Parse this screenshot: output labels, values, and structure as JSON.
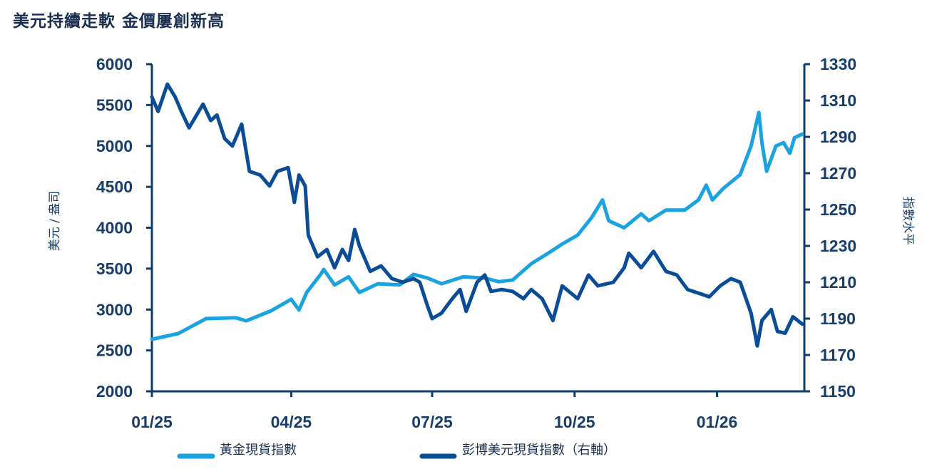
{
  "title": "美元持續走軟 金價屢創新高",
  "chart_data": {
    "type": "line",
    "title": "美元持續走軟 金價屢創新高",
    "x_ticks": [
      {
        "date": "2025-01-01",
        "label": "01/25"
      },
      {
        "date": "2025-04-01",
        "label": "04/25"
      },
      {
        "date": "2025-07-01",
        "label": "07/25"
      },
      {
        "date": "2025-10-01",
        "label": "10/25"
      },
      {
        "date": "2026-01-01",
        "label": "01/26"
      }
    ],
    "x_range": [
      "2025-01-01",
      "2026-02-25"
    ],
    "y_left": {
      "label": "美元 / 盎司",
      "range": [
        2000,
        6000
      ],
      "ticks": [
        2000,
        2500,
        3000,
        3500,
        4000,
        4500,
        5000,
        5500,
        6000
      ]
    },
    "y_right": {
      "label": "指數水平",
      "range": [
        1150,
        1330
      ],
      "ticks": [
        1150,
        1170,
        1190,
        1210,
        1230,
        1250,
        1270,
        1290,
        1310,
        1330
      ]
    },
    "grid": false,
    "legend_position": "bottom",
    "series": [
      {
        "name": "黃金現貨指數",
        "axis": "left",
        "color": "#1aa3e0",
        "points": [
          [
            "2025-01-01",
            2636
          ],
          [
            "2025-01-18",
            2706
          ],
          [
            "2025-02-05",
            2889
          ],
          [
            "2025-02-24",
            2900
          ],
          [
            "2025-03-03",
            2862
          ],
          [
            "2025-03-19",
            2985
          ],
          [
            "2025-04-01",
            3125
          ],
          [
            "2025-04-06",
            2994
          ],
          [
            "2025-04-11",
            3210
          ],
          [
            "2025-04-20",
            3430
          ],
          [
            "2025-04-22",
            3490
          ],
          [
            "2025-04-29",
            3300
          ],
          [
            "2025-05-08",
            3400
          ],
          [
            "2025-05-15",
            3210
          ],
          [
            "2025-05-27",
            3315
          ],
          [
            "2025-06-10",
            3300
          ],
          [
            "2025-06-19",
            3430
          ],
          [
            "2025-06-28",
            3385
          ],
          [
            "2025-07-07",
            3315
          ],
          [
            "2025-07-21",
            3400
          ],
          [
            "2025-08-04",
            3385
          ],
          [
            "2025-08-13",
            3340
          ],
          [
            "2025-08-22",
            3360
          ],
          [
            "2025-09-03",
            3560
          ],
          [
            "2025-09-14",
            3690
          ],
          [
            "2025-09-23",
            3800
          ],
          [
            "2025-10-03",
            3910
          ],
          [
            "2025-10-12",
            4125
          ],
          [
            "2025-10-19",
            4340
          ],
          [
            "2025-10-23",
            4085
          ],
          [
            "2025-11-02",
            4000
          ],
          [
            "2025-11-13",
            4170
          ],
          [
            "2025-11-18",
            4085
          ],
          [
            "2025-11-29",
            4215
          ],
          [
            "2025-12-11",
            4215
          ],
          [
            "2025-12-20",
            4340
          ],
          [
            "2025-12-25",
            4520
          ],
          [
            "2025-12-29",
            4340
          ],
          [
            "2026-01-05",
            4480
          ],
          [
            "2026-01-16",
            4650
          ],
          [
            "2026-01-23",
            5000
          ],
          [
            "2026-01-28",
            5410
          ],
          [
            "2026-01-30",
            5040
          ],
          [
            "2026-02-02",
            4690
          ],
          [
            "2026-02-08",
            5000
          ],
          [
            "2026-02-13",
            5040
          ],
          [
            "2026-02-17",
            4910
          ],
          [
            "2026-02-20",
            5100
          ],
          [
            "2026-02-25",
            5145
          ]
        ]
      },
      {
        "name": "彭博美元現貨指數（右軸）",
        "axis": "right",
        "color": "#0b4c97",
        "points": [
          [
            "2025-01-01",
            1312
          ],
          [
            "2025-01-05",
            1304
          ],
          [
            "2025-01-11",
            1319
          ],
          [
            "2025-01-16",
            1312
          ],
          [
            "2025-01-20",
            1304
          ],
          [
            "2025-01-25",
            1295
          ],
          [
            "2025-02-03",
            1308
          ],
          [
            "2025-02-08",
            1299
          ],
          [
            "2025-02-12",
            1302
          ],
          [
            "2025-02-17",
            1289
          ],
          [
            "2025-02-22",
            1285
          ],
          [
            "2025-02-28",
            1297
          ],
          [
            "2025-03-05",
            1271
          ],
          [
            "2025-03-12",
            1269
          ],
          [
            "2025-03-18",
            1263
          ],
          [
            "2025-03-23",
            1271
          ],
          [
            "2025-03-30",
            1273
          ],
          [
            "2025-04-03",
            1254
          ],
          [
            "2025-04-06",
            1269
          ],
          [
            "2025-04-10",
            1263
          ],
          [
            "2025-04-12",
            1236
          ],
          [
            "2025-04-18",
            1224
          ],
          [
            "2025-04-24",
            1228
          ],
          [
            "2025-04-29",
            1218
          ],
          [
            "2025-05-04",
            1228
          ],
          [
            "2025-05-08",
            1222
          ],
          [
            "2025-05-12",
            1239
          ],
          [
            "2025-05-15",
            1230
          ],
          [
            "2025-05-22",
            1216
          ],
          [
            "2025-05-29",
            1219
          ],
          [
            "2025-06-05",
            1212
          ],
          [
            "2025-06-12",
            1210
          ],
          [
            "2025-06-19",
            1212
          ],
          [
            "2025-06-23",
            1210
          ],
          [
            "2025-06-28",
            1197
          ],
          [
            "2025-07-01",
            1190
          ],
          [
            "2025-07-07",
            1193
          ],
          [
            "2025-07-14",
            1201
          ],
          [
            "2025-07-19",
            1206
          ],
          [
            "2025-07-23",
            1194
          ],
          [
            "2025-07-30",
            1210
          ],
          [
            "2025-08-04",
            1214
          ],
          [
            "2025-08-08",
            1205
          ],
          [
            "2025-08-15",
            1206
          ],
          [
            "2025-08-22",
            1205
          ],
          [
            "2025-08-29",
            1201
          ],
          [
            "2025-09-03",
            1206
          ],
          [
            "2025-09-10",
            1201
          ],
          [
            "2025-09-17",
            1189
          ],
          [
            "2025-09-23",
            1208
          ],
          [
            "2025-10-03",
            1201
          ],
          [
            "2025-10-10",
            1214
          ],
          [
            "2025-10-16",
            1208
          ],
          [
            "2025-10-26",
            1210
          ],
          [
            "2025-11-02",
            1218
          ],
          [
            "2025-11-05",
            1226
          ],
          [
            "2025-11-13",
            1218
          ],
          [
            "2025-11-21",
            1227
          ],
          [
            "2025-11-29",
            1216
          ],
          [
            "2025-12-06",
            1214
          ],
          [
            "2025-12-13",
            1206
          ],
          [
            "2025-12-20",
            1204
          ],
          [
            "2025-12-27",
            1202
          ],
          [
            "2026-01-03",
            1208
          ],
          [
            "2026-01-10",
            1212
          ],
          [
            "2026-01-16",
            1210
          ],
          [
            "2026-01-23",
            1193
          ],
          [
            "2026-01-27",
            1175
          ],
          [
            "2026-01-30",
            1189
          ],
          [
            "2026-02-05",
            1195
          ],
          [
            "2026-02-09",
            1183
          ],
          [
            "2026-02-14",
            1182
          ],
          [
            "2026-02-19",
            1191
          ],
          [
            "2026-02-25",
            1187
          ]
        ]
      }
    ]
  }
}
